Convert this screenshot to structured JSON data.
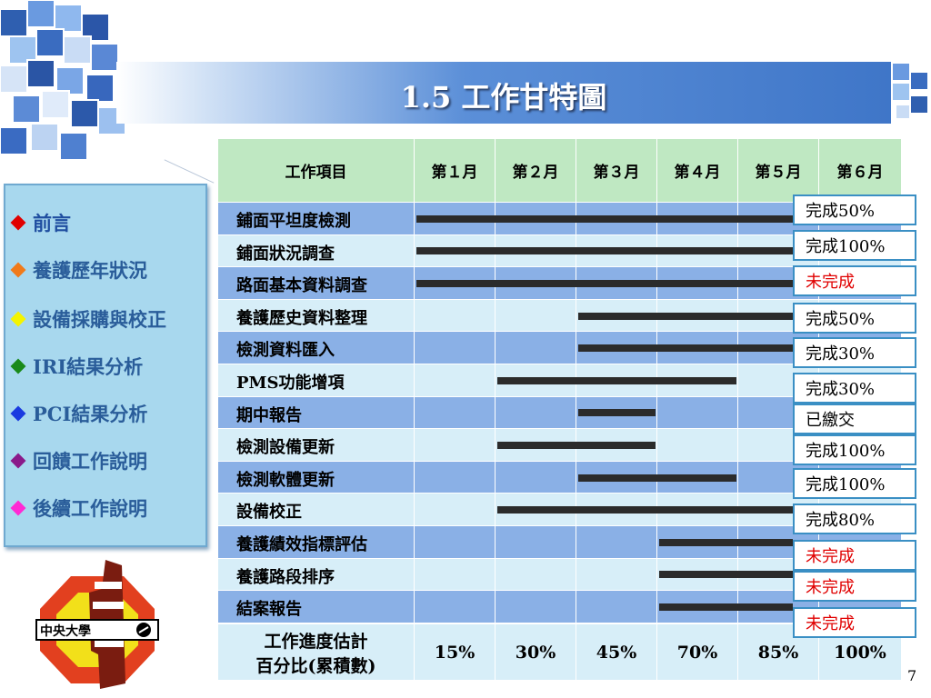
{
  "slide": {
    "title": "1.5 工作甘特圖",
    "page_number": "7"
  },
  "nav": {
    "items": [
      {
        "label": "前言",
        "color": "#e00000"
      },
      {
        "label": "養護歷年狀況",
        "color": "#f07a1a"
      },
      {
        "label": "設備採購與校正",
        "color": "#f4f400"
      },
      {
        "label": "IRI結果分析",
        "color": "#1a8a1a"
      },
      {
        "label": "PCI結果分析",
        "color": "#1a3ae0"
      },
      {
        "label": "回饋工作說明",
        "color": "#8a1a8a"
      },
      {
        "label": "後續工作說明",
        "color": "#ff2ad4"
      }
    ]
  },
  "logo": {
    "text": "中央大學"
  },
  "gantt": {
    "header": {
      "item": "工作項目",
      "months": [
        "第１月",
        "第２月",
        "第３月",
        "第４月",
        "第５月",
        "第６月"
      ]
    },
    "tasks": [
      {
        "name": "鋪面平坦度檢測",
        "start_month": 1,
        "end_month": 5,
        "status": "完成50%",
        "status_red": false
      },
      {
        "name": "鋪面狀況調查",
        "start_month": 1,
        "end_month": 5,
        "status": "完成100%",
        "status_red": false
      },
      {
        "name": "路面基本資料調查",
        "start_month": 1,
        "end_month": 5,
        "status": "未完成",
        "status_red": true
      },
      {
        "name": "養護歷史資料整理",
        "start_month": 3,
        "end_month": 5,
        "status": "完成50%",
        "status_red": false
      },
      {
        "name": "檢測資料匯入",
        "start_month": 3,
        "end_month": 5,
        "status": "完成30%",
        "status_red": false
      },
      {
        "name": "PMS功能增項",
        "start_month": 2,
        "end_month": 4,
        "status": "完成30%",
        "status_red": false
      },
      {
        "name": "期中報告",
        "start_month": 3,
        "end_month": 3,
        "status": "已繳交",
        "status_red": false
      },
      {
        "name": "檢測設備更新",
        "start_month": 2,
        "end_month": 3,
        "status": "完成100%",
        "status_red": false
      },
      {
        "name": "檢測軟體更新",
        "start_month": 3,
        "end_month": 4,
        "status": "完成100%",
        "status_red": false
      },
      {
        "name": "設備校正",
        "start_month": 2,
        "end_month": 5,
        "status": "完成80%",
        "status_red": false
      },
      {
        "name": "養護績效指標評估",
        "start_month": 4,
        "end_month": 5,
        "status": "未完成",
        "status_red": true
      },
      {
        "name": "養護路段排序",
        "start_month": 4,
        "end_month": 5,
        "status": "未完成",
        "status_red": true
      },
      {
        "name": "結案報告",
        "start_month": 4,
        "end_month": 5,
        "status": "未完成",
        "status_red": true
      }
    ],
    "footer": {
      "label_line1": "工作進度估計",
      "label_line2": "百分比(累積數)",
      "percents": [
        "15%",
        "30%",
        "45%",
        "70%",
        "85%",
        "100%"
      ]
    }
  }
}
